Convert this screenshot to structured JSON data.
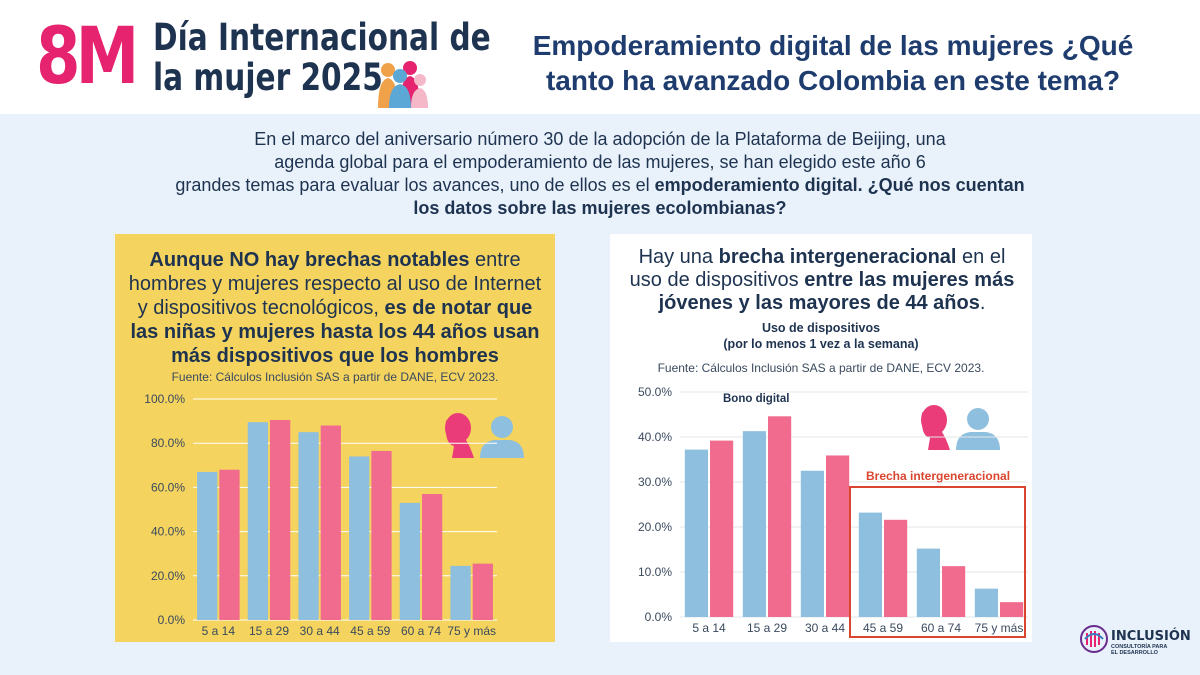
{
  "header": {
    "logo_mark": "8M",
    "event_title_line1": "Día Internacional de",
    "event_title_line2": "la mujer 2025",
    "title_line1": "Empoderamiento digital de las mujeres  ¿Qué",
    "title_line2": "tanto ha avanzado Colombia en este tema?"
  },
  "intro": {
    "line1": "En el marco del aniversario número 30 de la adopción de la Plataforma de Beijing, una",
    "line2": "agenda global para el empoderamiento de las mujeres, se han elegido este año 6",
    "line3_plain": "grandes temas para evaluar los avances, uno de ellos es el ",
    "line3_bold": "empoderamiento digital. ¿Qué nos cuentan",
    "line4_bold": "los datos sobre las mujeres ecolombianas?"
  },
  "left_panel": {
    "t1_bold": "Aunque NO hay brechas notables",
    "t1_plain": " entre hombres y mujeres respecto al uso de Internet y dispositivos tecnológicos, ",
    "t2_bold": "es de notar que las niñas y mujeres hasta los 44 años usan más dispositivos que los hombres",
    "source": "Fuente: Cálculos Inclusión SAS a partir de DANE, ECV 2023."
  },
  "right_panel": {
    "t1_plain": "Hay una ",
    "t1_bold": "brecha intergeneracional",
    "t2_plain": " en el uso de dispositivos ",
    "t2_bold": "entre las mujeres más jóvenes y las mayores de 44 años",
    "t3_plain": ".",
    "chart_title_line1": "Uso de dispositivos",
    "chart_title_line2": "(por lo menos 1 vez a la semana)",
    "source": "Fuente: Cálculos Inclusión SAS a partir de DANE, ECV 2023."
  },
  "brand": {
    "name": "INCLUSIÓN",
    "tagline": "CONSULTORÍA PARA EL DESARROLLO"
  },
  "colors": {
    "men": "#8fbfde",
    "women": "#f06b8e",
    "accent_pink": "#e6236e",
    "navy": "#1e3350",
    "highlight_box": "#d9452f"
  },
  "chart_data": [
    {
      "type": "bar",
      "categories": [
        "5 a 14",
        "15 a 29",
        "30 a 44",
        "45 a 59",
        "60 a 74",
        "75 y más"
      ],
      "series": [
        {
          "values": [
            67,
            89.5,
            85,
            74,
            53,
            24.5
          ],
          "color": "#8fbfde"
        },
        {
          "values": [
            68,
            90.5,
            88,
            76.5,
            57,
            25.5
          ],
          "color": "#f06b8e"
        }
      ],
      "yticks": [
        "0.0%",
        "20.0%",
        "40.0%",
        "60.0%",
        "80.0%",
        "100.0%"
      ],
      "ylim": [
        0,
        100
      ],
      "grid": true
    },
    {
      "type": "bar",
      "title": "Uso de dispositivos (por lo menos 1 vez a la semana)",
      "categories": [
        "5 a 14",
        "15 a 29",
        "30 a 44",
        "45 a 59",
        "60 a 74",
        "75 y más"
      ],
      "series": [
        {
          "values": [
            37.2,
            41.3,
            32.5,
            23.2,
            15.2,
            6.3
          ],
          "color": "#8fbfde"
        },
        {
          "values": [
            39.2,
            44.6,
            35.9,
            21.6,
            11.3,
            3.3
          ],
          "color": "#f06b8e"
        }
      ],
      "yticks": [
        "0.0%",
        "10.0%",
        "20.0%",
        "30.0%",
        "40.0%",
        "50.0%"
      ],
      "ylim": [
        0,
        50
      ],
      "annotations": [
        "Bono digital",
        "Brecha intergeneracional"
      ],
      "grid": true
    }
  ]
}
